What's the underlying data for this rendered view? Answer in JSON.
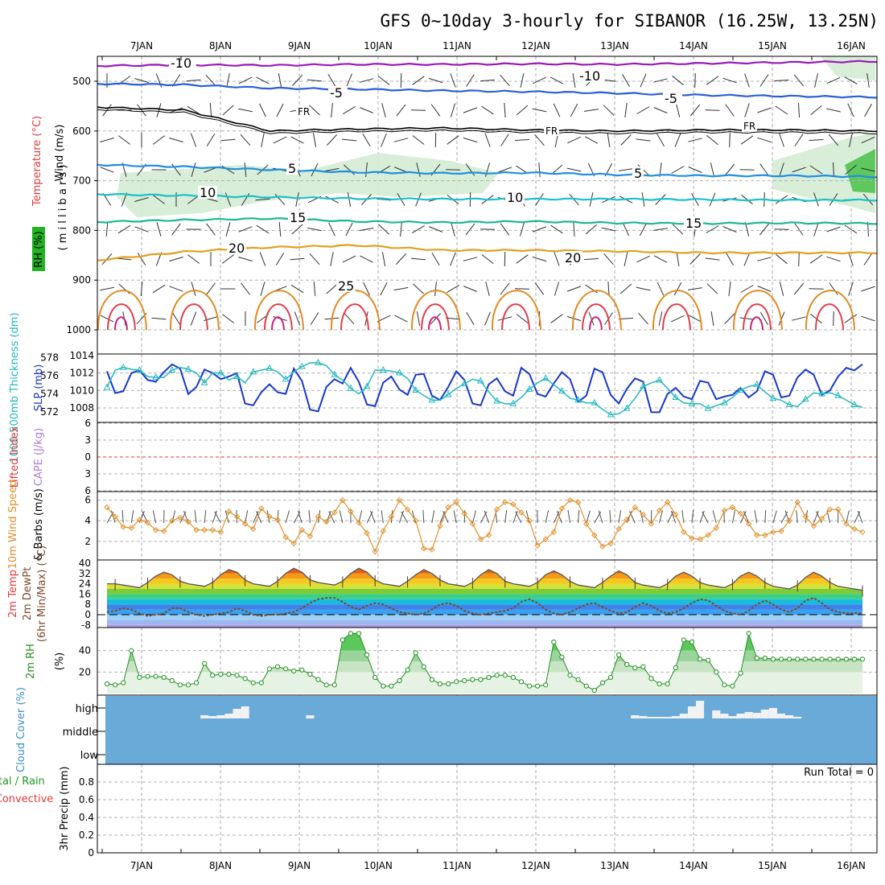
{
  "title": "GFS 0~10day 3-hourly for SIBANOR (16.25W, 13.25N)",
  "date_labels": [
    "7JAN",
    "8JAN",
    "9JAN",
    "10JAN",
    "11JAN",
    "12JAN",
    "13JAN",
    "14JAN",
    "15JAN",
    "16JAN"
  ],
  "colors": {
    "temp_c": "#e23b3b",
    "rh_green": "#22b222",
    "slp": "#1838c8",
    "thick": "#22b8c0",
    "wind10": "#e0902a",
    "rh2m": "#1f8f1f",
    "cloud": "#6aaad8",
    "frame": "#000000",
    "grid": "#a0a0a0"
  },
  "chart_data": [
    {
      "panel": "upper-air",
      "type": "heatmap",
      "ylabel_parts": [
        {
          "text": "Wind (m/s)",
          "color": "#000000"
        },
        {
          "text": "Temperature (°C)",
          "color": "#e23b3b"
        },
        {
          "text": "RH (%)",
          "color": "#22b222"
        },
        {
          "text": "( m i l l i b a r s )",
          "color": "#000000"
        }
      ],
      "y_ticks": [
        500,
        600,
        700,
        800,
        900,
        1000
      ],
      "ylim": [
        1000,
        450
      ],
      "isotherm_labels": [
        "-10",
        "-10",
        "-5",
        "-5",
        "FR",
        "FR",
        "FR",
        "5",
        "5",
        "10",
        "10",
        "15",
        "15",
        "20",
        "20",
        "25"
      ],
      "isotherms": [
        {
          "level": "-10",
          "color": "#9a1ab8",
          "pressure_hpa": [
            469,
            467,
            468,
            466,
            466,
            465,
            466,
            464,
            462,
            460
          ]
        },
        {
          "level": "-5",
          "color": "#2a5fd8",
          "pressure_hpa": [
            505,
            507,
            514,
            516,
            519,
            521,
            524,
            528,
            530,
            532
          ]
        },
        {
          "level": "FR",
          "color": "#000000",
          "pressure_hpa": [
            552,
            558,
            600,
            596,
            594,
            598,
            600,
            598,
            598,
            600
          ]
        },
        {
          "level": "5",
          "color": "#1f90e0",
          "pressure_hpa": [
            668,
            672,
            678,
            683,
            685,
            684,
            688,
            690,
            690,
            692
          ]
        },
        {
          "level": "10",
          "color": "#1fc0c8",
          "pressure_hpa": [
            727,
            730,
            733,
            736,
            737,
            737,
            737,
            738,
            739,
            739
          ]
        },
        {
          "level": "15",
          "color": "#1fb890",
          "pressure_hpa": [
            783,
            779,
            776,
            782,
            784,
            782,
            785,
            786,
            785,
            786
          ]
        },
        {
          "level": "20",
          "color": "#e0a020",
          "pressure_hpa": [
            860,
            843,
            834,
            830,
            840,
            840,
            842,
            845,
            845,
            845
          ]
        }
      ]
    },
    {
      "panel": "thickness-slp",
      "type": "line",
      "ylabel_left": "1000-500mb Thickness (dm)",
      "ylabel_right": "SLP (mb)",
      "y_ticks_left": [
        572,
        574,
        576,
        578
      ],
      "y_ticks_right": [
        1008,
        1010,
        1012,
        1014
      ],
      "series": [
        {
          "axis": "SLP (mb)",
          "values": [
            1012.2,
            1009.7,
            1009.9,
            1012.0,
            1012.3,
            1011.2,
            1011.0,
            1012.1,
            1013.0,
            1012.5,
            1009.6,
            1010.4,
            1012.4,
            1012.0,
            1011.3,
            1011.6,
            1012.0,
            1008.5,
            1008.3,
            1009.8,
            1010.7,
            1009.8,
            1009.6,
            1012.5,
            1011.1,
            1007.8,
            1007.6,
            1010.4,
            1011.3,
            1010.8,
            1012.6,
            1011.0,
            1008.4,
            1008.2,
            1010.9,
            1011.6,
            1010.1,
            1009.5,
            1011.8,
            1011.9,
            1009.4,
            1008.9,
            1010.4,
            1012.2,
            1011.2,
            1008.5,
            1008.3,
            1010.7,
            1011.4,
            1009.9,
            1009.4,
            1012.6,
            1011.9,
            1009.6,
            1009.3,
            1010.8,
            1012.1,
            1011.3,
            1008.7,
            1009.4,
            1012.5,
            1012.1,
            1009.5,
            1008.5,
            1010.2,
            1011.4,
            1011.0,
            1007.5,
            1007.5,
            1009.6,
            1010.3,
            1009.3,
            1009.0,
            1011.1,
            1010.9,
            1009.0,
            1009.3,
            1009.5,
            1010.3,
            1009.2,
            1009.9,
            1012.2,
            1011.8,
            1009.2,
            1009.4,
            1011.5,
            1012.4,
            1011.8,
            1009.5,
            1010.0,
            1011.6,
            1012.6,
            1012.3,
            1013.0
          ]
        },
        {
          "axis": "1000-500mb Thickness (dm)",
          "values": [
            574.7,
            576.6,
            576.9,
            576.7,
            576.6,
            575.9,
            575.8,
            575.8,
            576.6,
            576.9,
            576.7,
            576.3,
            575.2,
            576.3,
            576.3,
            575.5,
            575.9,
            575.2,
            576.4,
            576.6,
            576.8,
            576.4,
            575.6,
            576.4,
            577.0,
            577.4,
            577.4,
            577.1,
            576.1,
            575.5,
            574.6,
            574.0,
            574.8,
            576.6,
            576.6,
            576.5,
            576.3,
            575.7,
            574.4,
            573.8,
            573.3,
            573.3,
            573.9,
            574.6,
            575.1,
            575.6,
            575.4,
            574.2,
            573.2,
            572.9,
            572.9,
            573.6,
            574.5,
            575.2,
            575.7,
            575.0,
            574.3,
            573.5,
            573.3,
            573.0,
            573.0,
            572.3,
            571.7,
            571.8,
            572.4,
            573.5,
            574.8,
            575.2,
            575.5,
            574.6,
            573.6,
            573.0,
            572.9,
            572.9,
            572.4,
            572.7,
            573.0,
            573.6,
            574.4,
            574.8,
            575.0,
            574.2,
            573.5,
            573.3,
            572.8,
            572.6,
            573.4,
            574.1,
            574.0,
            574.1,
            573.8,
            573.3,
            572.8,
            572.5
          ]
        }
      ]
    },
    {
      "panel": "stability",
      "type": "line",
      "ylabel_parts": [
        {
          "text": "Lifted Index",
          "color": "#e23b3b"
        },
        {
          "text": "CAPE (J/kg)",
          "color": "#b07ad8"
        }
      ],
      "y_ticks": [
        "-6",
        "-3",
        "0",
        "3",
        "6"
      ]
    },
    {
      "panel": "wind10m",
      "type": "line",
      "ylabel_parts": [
        {
          "text": "10m Wind Speed",
          "color": "#e0902a"
        },
        {
          "text": "& Barbs (m/s)",
          "color": "#000000"
        }
      ],
      "y_ticks": [
        2,
        4,
        6
      ],
      "ylim": [
        0.5,
        6.6
      ],
      "series": [
        {
          "name": "10m Wind Speed",
          "values": [
            5.3,
            4.4,
            3.4,
            3.3,
            4.1,
            3.8,
            3.1,
            3.0,
            4.0,
            4.3,
            3.9,
            3.1,
            3.1,
            3.1,
            2.9,
            4.9,
            4.4,
            3.7,
            3.2,
            5.2,
            4.4,
            4.1,
            2.4,
            1.8,
            3.1,
            2.5,
            4.4,
            3.9,
            4.8,
            6.0,
            4.9,
            3.8,
            2.8,
            1.0,
            3.0,
            4.4,
            6.0,
            5.1,
            4.0,
            1.3,
            1.2,
            3.5,
            5.3,
            5.8,
            4.7,
            3.7,
            2.2,
            2.6,
            5.1,
            5.8,
            5.6,
            4.8,
            4.0,
            1.6,
            2.2,
            2.9,
            5.2,
            6.0,
            5.8,
            3.7,
            2.6,
            1.5,
            1.8,
            3.2,
            4.1,
            5.3,
            4.6,
            3.7,
            5.0,
            5.8,
            4.6,
            2.9,
            2.3,
            2.2,
            2.6,
            3.3,
            5.0,
            5.3,
            4.7,
            3.7,
            2.6,
            2.6,
            2.9,
            3.0,
            4.0,
            5.8,
            4.4,
            3.5,
            4.2,
            5.1,
            5.1,
            3.7,
            3.2,
            2.9
          ]
        }
      ]
    },
    {
      "panel": "temp2m",
      "type": "area",
      "ylabel_parts": [
        {
          "text": "2m Temp",
          "color": "#e23b3b"
        },
        {
          "text": "2m DewPt",
          "color": "#7a4a2a"
        },
        {
          "text": "(6hr Min/Max) (°C)",
          "color": "#7a4a2a"
        }
      ],
      "y_ticks": [
        "-8",
        "0",
        "8",
        "16",
        "24",
        "32",
        "40"
      ],
      "series": [
        {
          "name": "2m Temp",
          "values": [
            24,
            24,
            23,
            22,
            21,
            25,
            30,
            33,
            31,
            26,
            24,
            23,
            22,
            25,
            31,
            35,
            33,
            27,
            24,
            23,
            22,
            26,
            32,
            36,
            33,
            27,
            25,
            24,
            23,
            26,
            32,
            36,
            33,
            27,
            24,
            23,
            22,
            26,
            31,
            35,
            32,
            27,
            24,
            23,
            22,
            25,
            31,
            35,
            32,
            26,
            24,
            23,
            22,
            25,
            31,
            34,
            31,
            26,
            23,
            22,
            21,
            25,
            30,
            34,
            31,
            25,
            23,
            22,
            21,
            24,
            30,
            33,
            30,
            25,
            23,
            22,
            21,
            24,
            30,
            33,
            30,
            25,
            22,
            21,
            20,
            23,
            29,
            33,
            30,
            25,
            22,
            21,
            20,
            19
          ]
        },
        {
          "name": "2m DewPt",
          "values": [
            2,
            3,
            5,
            4,
            1,
            -1,
            0,
            1,
            5,
            5,
            2,
            0,
            -1,
            0,
            1,
            2,
            5,
            3,
            0,
            -1,
            0,
            0,
            1,
            2,
            5,
            9,
            12,
            13,
            13,
            10,
            6,
            4,
            7,
            9,
            8,
            5,
            2,
            1,
            0,
            1,
            4,
            8,
            9,
            7,
            3,
            1,
            0,
            1,
            2,
            3,
            5,
            10,
            12,
            9,
            4,
            1,
            0,
            2,
            5,
            8,
            9,
            6,
            3,
            1,
            2,
            6,
            9,
            7,
            3,
            1,
            2,
            5,
            9,
            12,
            11,
            7,
            3,
            1,
            0,
            3,
            8,
            11,
            8,
            4,
            2,
            5,
            11,
            13,
            9,
            4,
            2,
            1,
            1,
            1
          ]
        }
      ]
    },
    {
      "panel": "rh2m",
      "type": "area",
      "ylabel_parts": [
        {
          "text": "2m RH",
          "color": "#1f8f1f"
        },
        {
          "text": "(%)",
          "color": "#000000"
        }
      ],
      "y_ticks": [
        20,
        40
      ],
      "series": [
        {
          "name": "2m RH",
          "values": [
            9,
            8,
            10,
            40,
            15,
            16,
            16,
            15,
            12,
            8,
            8,
            10,
            28,
            17,
            18,
            18,
            17,
            14,
            10,
            10,
            23,
            25,
            23,
            21,
            22,
            18,
            13,
            8,
            8,
            50,
            56,
            56,
            36,
            15,
            7,
            7,
            12,
            22,
            38,
            25,
            13,
            9,
            9,
            11,
            12,
            13,
            13,
            15,
            17,
            17,
            15,
            11,
            7,
            7,
            8,
            48,
            34,
            17,
            13,
            7,
            3,
            10,
            15,
            36,
            27,
            24,
            25,
            14,
            9,
            9,
            24,
            50,
            48,
            32,
            31,
            20,
            8,
            7,
            19,
            56,
            33,
            33,
            32,
            32,
            32,
            32,
            32,
            32,
            32,
            32,
            32,
            32,
            32,
            32
          ]
        }
      ]
    },
    {
      "panel": "cloud",
      "type": "bar",
      "ylabel": "Cloud Cover (%)",
      "levels": [
        "high",
        "middle",
        "low"
      ],
      "series": [
        {
          "name": "high",
          "values": [
            0,
            0,
            0,
            0,
            0,
            0,
            0,
            0,
            0,
            0,
            0,
            0,
            4,
            3,
            4,
            6,
            12,
            15,
            0,
            0,
            0,
            0,
            0,
            0,
            0,
            4,
            0,
            0,
            0,
            0,
            0,
            0,
            0,
            0,
            0,
            0,
            0,
            0,
            0,
            0,
            0,
            0,
            0,
            0,
            0,
            0,
            0,
            0,
            0,
            0,
            0,
            0,
            0,
            0,
            0,
            0,
            0,
            0,
            0,
            0,
            0,
            0,
            0,
            0,
            0,
            4,
            3,
            2,
            2,
            2,
            3,
            6,
            15,
            22,
            0,
            10,
            6,
            3,
            6,
            8,
            7,
            11,
            13,
            6,
            4,
            2,
            0,
            0,
            0,
            0,
            0,
            0,
            0,
            0
          ]
        }
      ]
    },
    {
      "panel": "precip",
      "type": "bar",
      "ylabel_parts": [
        {
          "text": "Total / Rain",
          "color": "#1f9a1f"
        },
        {
          "text": "Convective",
          "color": "#e23b3b"
        },
        {
          "text": "3hr Precip (mm)",
          "color": "#000000"
        }
      ],
      "y_ticks": [
        "0",
        "0.2",
        "0.4",
        "0.6",
        "0.8"
      ],
      "run_total": "Run Total = 0",
      "values": []
    }
  ]
}
